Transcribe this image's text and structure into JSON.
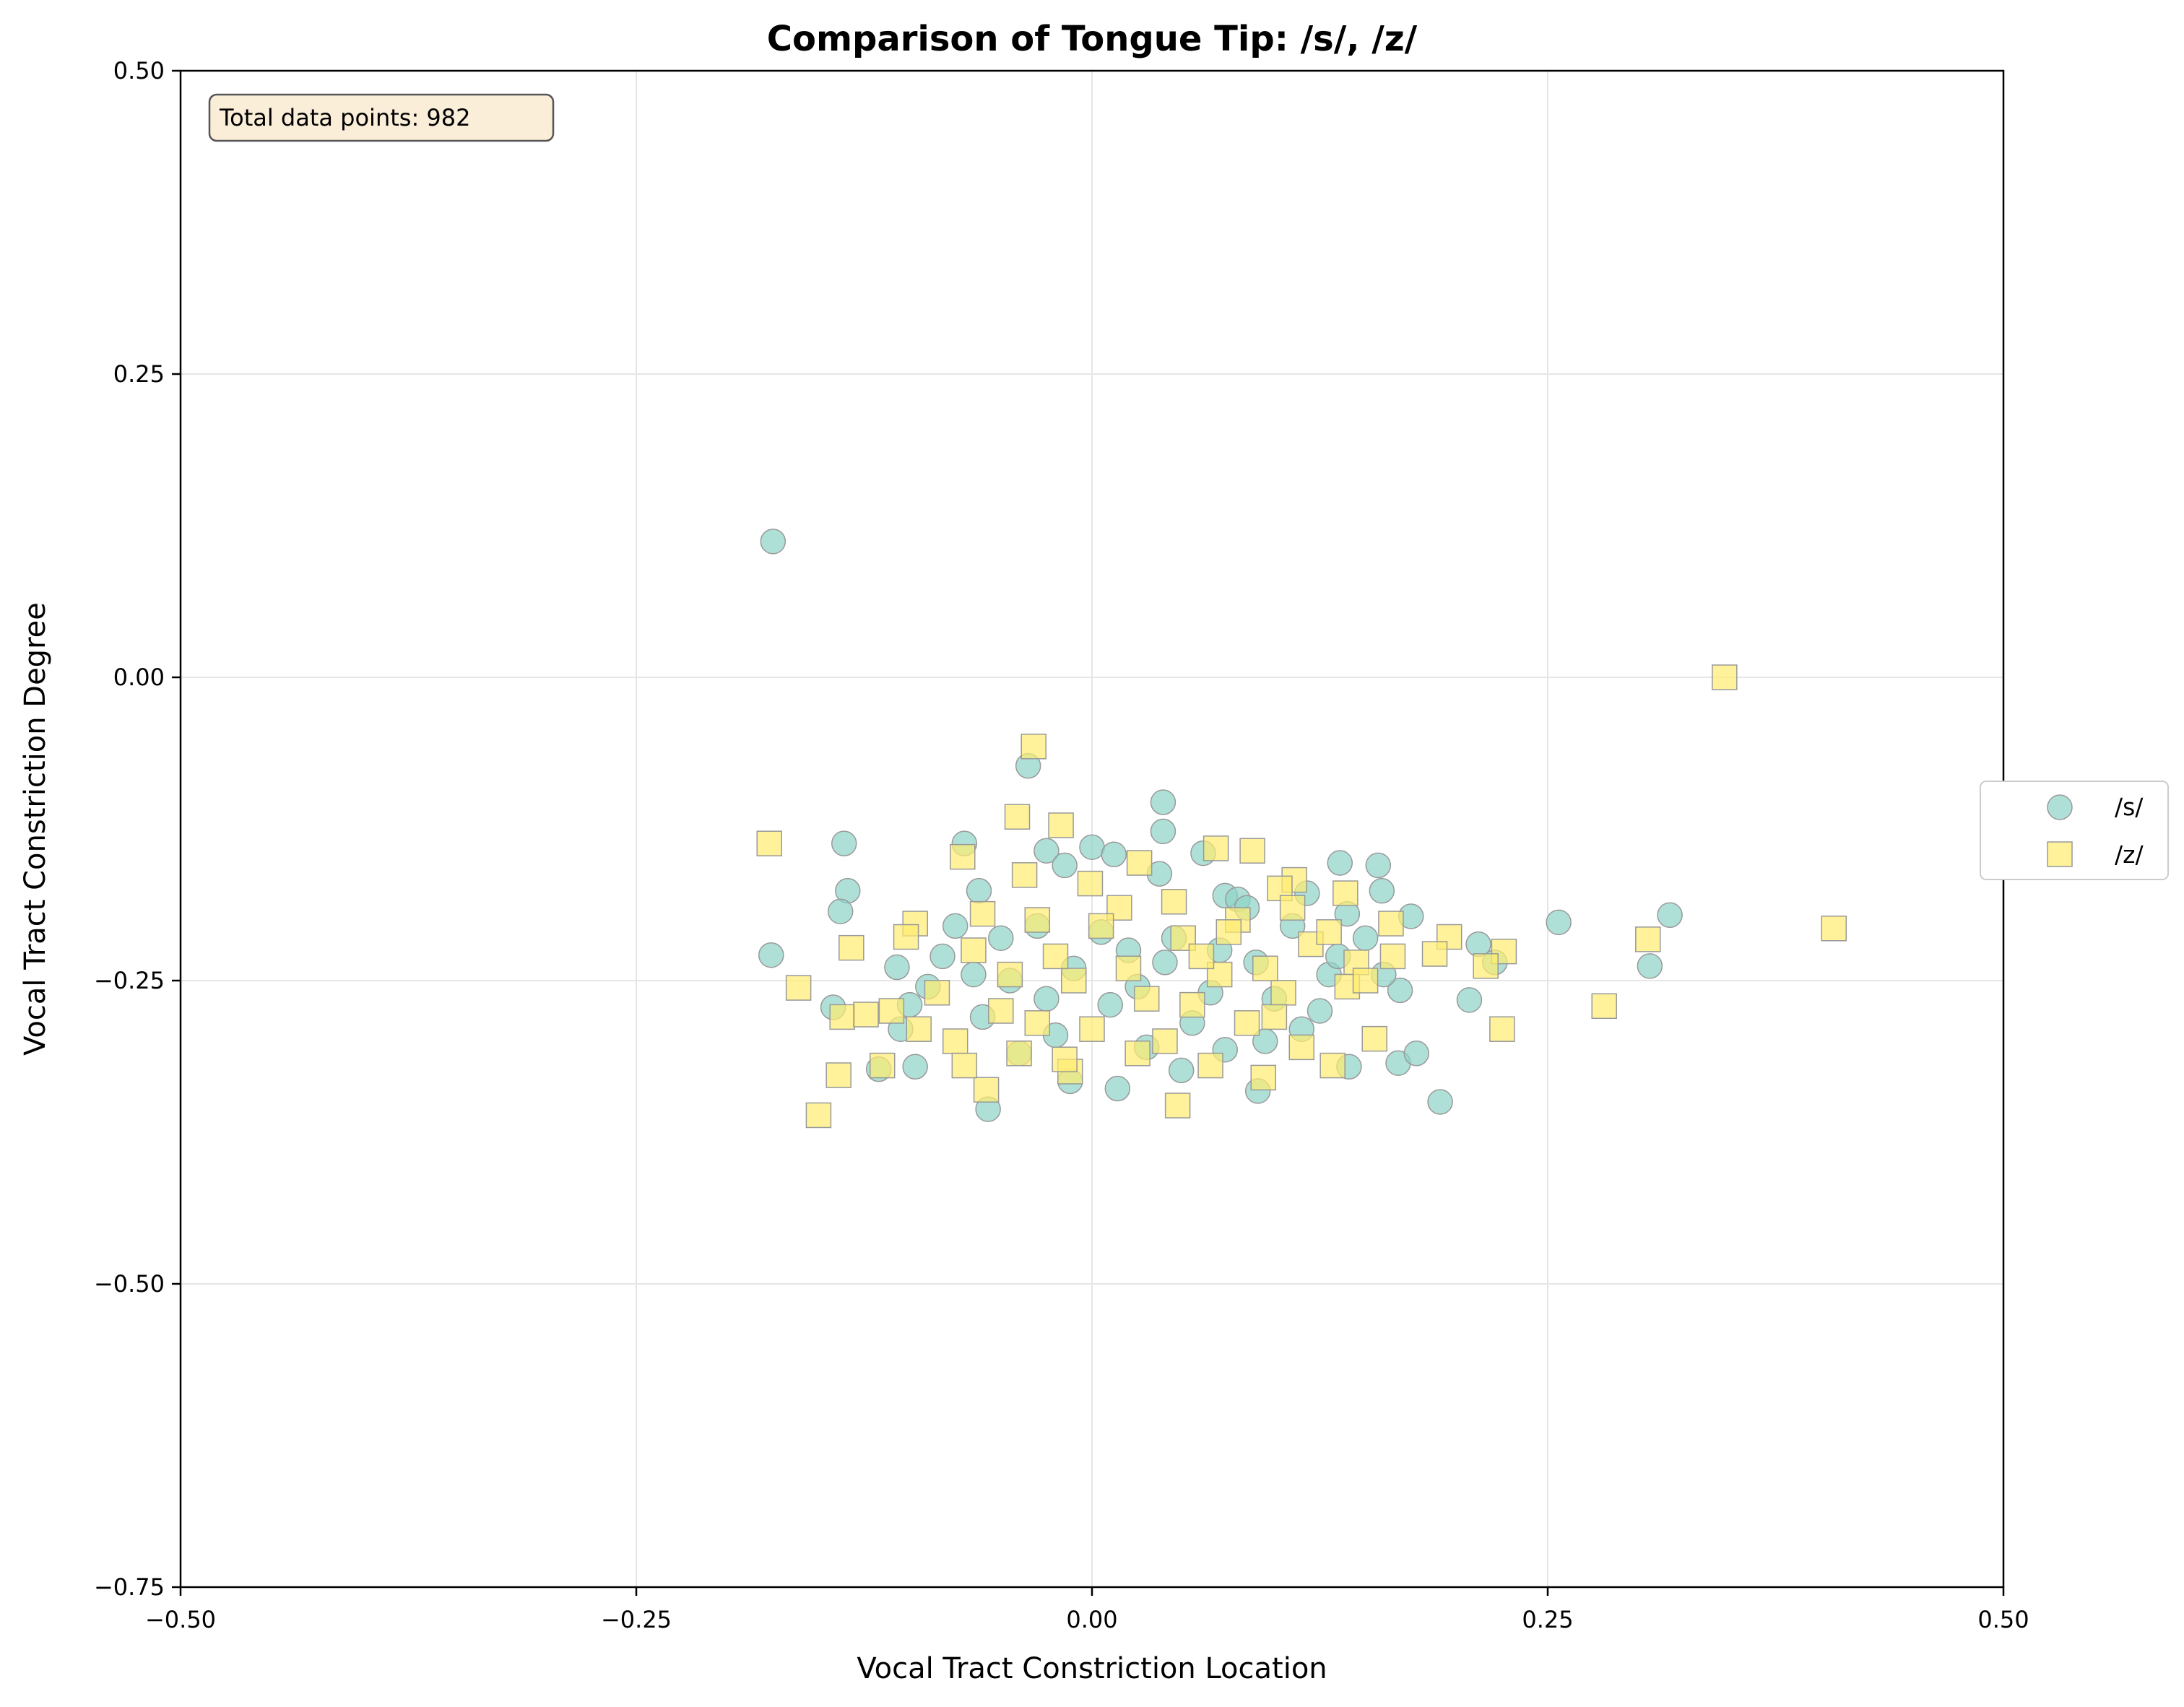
{
  "chart_data": {
    "type": "scatter",
    "title": "Comparison of Tongue Tip: /s/, /z/",
    "xlabel": "Vocal Tract Constriction Location",
    "ylabel": "Vocal Tract Constriction Degree",
    "xlim": [
      -0.5,
      0.5
    ],
    "ylim": [
      -0.75,
      0.5
    ],
    "xticks": [
      -0.5,
      -0.25,
      0.0,
      0.25,
      0.5
    ],
    "xtick_labels": [
      "−0.50",
      "−0.25",
      "0.00",
      "0.25",
      "0.50"
    ],
    "yticks": [
      0.5,
      0.25,
      0.0,
      -0.25,
      -0.5,
      -0.75
    ],
    "ytick_labels": [
      "0.50",
      "0.25",
      "0.00",
      "−0.25",
      "−0.50",
      "−0.75"
    ],
    "grid": true,
    "legend_placement": "outside-right",
    "annotation": "Total data points: 982",
    "series": [
      {
        "name": "/s/",
        "marker": "circle",
        "color": "#8dd3c7",
        "edge_color": "#999999",
        "points": [
          [
            -0.175,
            0.112
          ],
          [
            -0.035,
            -0.073
          ],
          [
            0.039,
            -0.103
          ],
          [
            0.039,
            -0.127
          ],
          [
            -0.07,
            -0.137
          ],
          [
            -0.136,
            -0.137
          ],
          [
            0.0,
            -0.14
          ],
          [
            0.012,
            -0.146
          ],
          [
            -0.025,
            -0.143
          ],
          [
            0.061,
            -0.145
          ],
          [
            0.136,
            -0.153
          ],
          [
            0.157,
            -0.155
          ],
          [
            -0.015,
            -0.155
          ],
          [
            0.037,
            -0.162
          ],
          [
            -0.134,
            -0.176
          ],
          [
            0.159,
            -0.176
          ],
          [
            0.118,
            -0.178
          ],
          [
            -0.062,
            -0.176
          ],
          [
            0.073,
            -0.18
          ],
          [
            0.08,
            -0.183
          ],
          [
            -0.138,
            -0.193
          ],
          [
            0.175,
            -0.197
          ],
          [
            0.256,
            -0.202
          ],
          [
            0.317,
            -0.196
          ],
          [
            -0.176,
            -0.229
          ],
          [
            0.212,
            -0.22
          ],
          [
            0.221,
            -0.235
          ],
          [
            0.306,
            -0.238
          ],
          [
            -0.142,
            -0.272
          ],
          [
            0.207,
            -0.266
          ],
          [
            0.169,
            -0.258
          ],
          [
            -0.107,
            -0.239
          ],
          [
            -0.117,
            -0.323
          ],
          [
            -0.097,
            -0.321
          ],
          [
            -0.057,
            -0.356
          ],
          [
            0.014,
            -0.339
          ],
          [
            0.049,
            -0.324
          ],
          [
            0.091,
            -0.341
          ],
          [
            0.141,
            -0.321
          ],
          [
            0.168,
            -0.318
          ],
          [
            0.178,
            -0.31
          ],
          [
            0.191,
            -0.35
          ],
          [
            -0.012,
            -0.333
          ],
          [
            0.073,
            -0.307
          ],
          [
            -0.082,
            -0.23
          ],
          [
            -0.05,
            -0.215
          ],
          [
            -0.03,
            -0.205
          ],
          [
            0.02,
            -0.225
          ],
          [
            0.045,
            -0.215
          ],
          [
            0.09,
            -0.235
          ],
          [
            0.11,
            -0.205
          ],
          [
            0.13,
            -0.245
          ],
          [
            0.15,
            -0.215
          ],
          [
            -0.09,
            -0.255
          ],
          [
            -0.06,
            -0.28
          ],
          [
            -0.02,
            -0.295
          ],
          [
            0.01,
            -0.27
          ],
          [
            0.055,
            -0.285
          ],
          [
            0.095,
            -0.3
          ],
          [
            0.125,
            -0.275
          ],
          [
            -0.105,
            -0.29
          ],
          [
            -0.04,
            -0.31
          ],
          [
            0.03,
            -0.305
          ],
          [
            0.065,
            -0.26
          ],
          [
            0.1,
            -0.265
          ],
          [
            0.16,
            -0.245
          ],
          [
            -0.01,
            -0.24
          ],
          [
            0.025,
            -0.255
          ],
          [
            -0.075,
            -0.205
          ],
          [
            0.14,
            -0.195
          ],
          [
            0.085,
            -0.19
          ],
          [
            -0.045,
            -0.25
          ],
          [
            0.04,
            -0.235
          ],
          [
            0.115,
            -0.29
          ],
          [
            -0.025,
            -0.265
          ],
          [
            0.005,
            -0.21
          ],
          [
            0.07,
            -0.225
          ],
          [
            -0.065,
            -0.245
          ],
          [
            0.135,
            -0.23
          ],
          [
            -0.1,
            -0.27
          ]
        ]
      },
      {
        "name": "/z/",
        "marker": "square",
        "color": "#ffed6f",
        "edge_color": "#999999",
        "points": [
          [
            0.347,
            0.0
          ],
          [
            -0.032,
            -0.057
          ],
          [
            -0.177,
            -0.137
          ],
          [
            -0.041,
            -0.115
          ],
          [
            -0.017,
            -0.122
          ],
          [
            -0.071,
            -0.148
          ],
          [
            0.068,
            -0.141
          ],
          [
            0.088,
            -0.143
          ],
          [
            0.026,
            -0.153
          ],
          [
            -0.037,
            -0.163
          ],
          [
            0.111,
            -0.167
          ],
          [
            0.103,
            -0.174
          ],
          [
            0.139,
            -0.178
          ],
          [
            -0.001,
            -0.17
          ],
          [
            0.407,
            -0.207
          ],
          [
            0.305,
            -0.216
          ],
          [
            0.196,
            -0.214
          ],
          [
            0.226,
            -0.226
          ],
          [
            0.164,
            -0.203
          ],
          [
            -0.097,
            -0.203
          ],
          [
            -0.102,
            -0.214
          ],
          [
            -0.132,
            -0.223
          ],
          [
            -0.161,
            -0.256
          ],
          [
            -0.137,
            -0.28
          ],
          [
            -0.124,
            -0.278
          ],
          [
            -0.139,
            -0.328
          ],
          [
            -0.15,
            -0.361
          ],
          [
            -0.115,
            -0.32
          ],
          [
            0.047,
            -0.353
          ],
          [
            0.281,
            -0.271
          ],
          [
            0.225,
            -0.29
          ],
          [
            0.155,
            -0.298
          ],
          [
            0.132,
            -0.32
          ],
          [
            0.094,
            -0.33
          ],
          [
            0.188,
            -0.228
          ],
          [
            0.216,
            -0.238
          ],
          [
            -0.058,
            -0.34
          ],
          [
            -0.012,
            -0.325
          ],
          [
            -0.065,
            -0.225
          ],
          [
            -0.03,
            -0.2
          ],
          [
            0.015,
            -0.19
          ],
          [
            0.05,
            -0.215
          ],
          [
            0.08,
            -0.2
          ],
          [
            0.12,
            -0.22
          ],
          [
            0.145,
            -0.235
          ],
          [
            -0.085,
            -0.26
          ],
          [
            -0.05,
            -0.275
          ],
          [
            -0.01,
            -0.25
          ],
          [
            0.03,
            -0.265
          ],
          [
            0.07,
            -0.245
          ],
          [
            0.105,
            -0.26
          ],
          [
            0.14,
            -0.255
          ],
          [
            -0.075,
            -0.3
          ],
          [
            -0.04,
            -0.31
          ],
          [
            0.0,
            -0.29
          ],
          [
            0.04,
            -0.3
          ],
          [
            0.085,
            -0.285
          ],
          [
            0.115,
            -0.305
          ],
          [
            -0.095,
            -0.29
          ],
          [
            -0.02,
            -0.23
          ],
          [
            0.02,
            -0.24
          ],
          [
            0.06,
            -0.23
          ],
          [
            0.095,
            -0.24
          ],
          [
            0.13,
            -0.21
          ],
          [
            -0.06,
            -0.195
          ],
          [
            0.005,
            -0.205
          ],
          [
            0.045,
            -0.185
          ],
          [
            0.075,
            -0.21
          ],
          [
            -0.045,
            -0.245
          ],
          [
            0.055,
            -0.27
          ],
          [
            0.1,
            -0.28
          ],
          [
            0.15,
            -0.25
          ],
          [
            -0.015,
            -0.315
          ],
          [
            0.025,
            -0.31
          ],
          [
            0.065,
            -0.32
          ],
          [
            -0.07,
            -0.32
          ],
          [
            0.165,
            -0.23
          ],
          [
            -0.11,
            -0.275
          ],
          [
            0.11,
            -0.19
          ],
          [
            -0.03,
            -0.285
          ]
        ]
      }
    ]
  }
}
